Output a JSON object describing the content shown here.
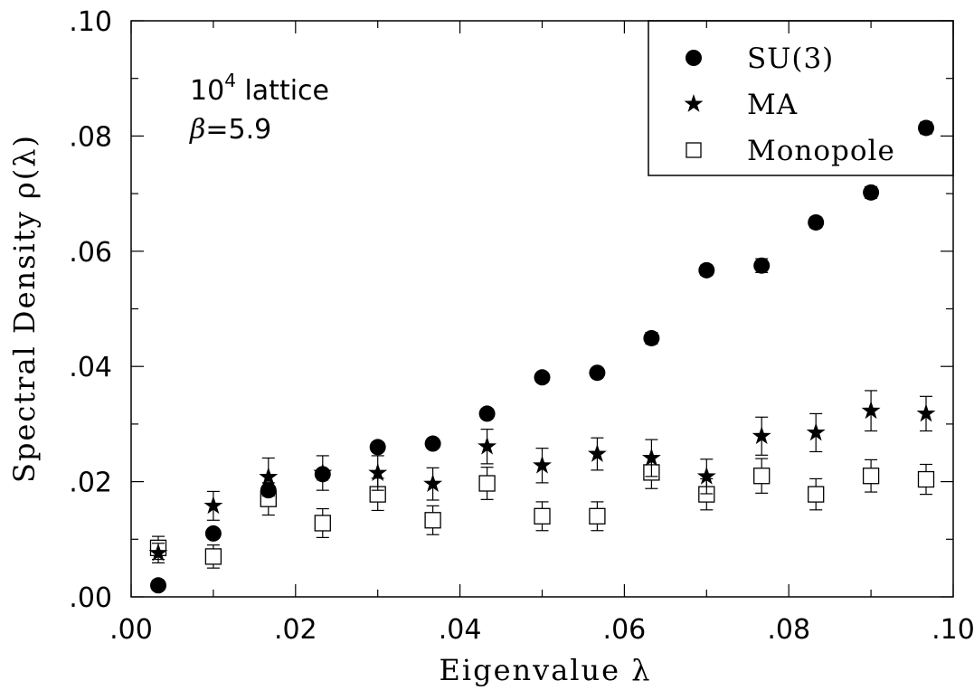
{
  "chart_data": {
    "type": "scatter",
    "xlabel": "Eigenvalue λ",
    "ylabel": "Spectral Density ρ(λ)",
    "xlim": [
      0,
      0.1
    ],
    "ylim": [
      0,
      0.1
    ],
    "x_ticks": [
      ".00",
      ".02",
      ".04",
      ".06",
      ".08",
      ".10"
    ],
    "y_ticks": [
      ".00",
      ".02",
      ".04",
      ".06",
      ".08",
      ".10"
    ],
    "grid": false,
    "legend_position": "top-right",
    "annotations": {
      "lattice_base": "10",
      "lattice_exp": "4",
      "lattice_word": " lattice",
      "beta_symbol": "β",
      "beta_value": "=5.9"
    },
    "series": [
      {
        "name": "SU(3)",
        "marker": "filled-circle",
        "points": [
          {
            "x": 0.0033,
            "y": 0.002,
            "err": 0.0003
          },
          {
            "x": 0.01,
            "y": 0.011,
            "err": 0.0004
          },
          {
            "x": 0.0167,
            "y": 0.0185,
            "err": 0.0006
          },
          {
            "x": 0.0233,
            "y": 0.0213,
            "err": 0.0007
          },
          {
            "x": 0.03,
            "y": 0.026,
            "err": 0.0008
          },
          {
            "x": 0.0367,
            "y": 0.0266,
            "err": 0.0008
          },
          {
            "x": 0.0433,
            "y": 0.0318,
            "err": 0.0008
          },
          {
            "x": 0.05,
            "y": 0.0381,
            "err": 0.0008
          },
          {
            "x": 0.0567,
            "y": 0.0389,
            "err": 0.0008
          },
          {
            "x": 0.0633,
            "y": 0.0449,
            "err": 0.001
          },
          {
            "x": 0.07,
            "y": 0.0567,
            "err": 0.0009
          },
          {
            "x": 0.0767,
            "y": 0.0575,
            "err": 0.0012
          },
          {
            "x": 0.0833,
            "y": 0.065,
            "err": 0.0009
          },
          {
            "x": 0.09,
            "y": 0.0702,
            "err": 0.001
          },
          {
            "x": 0.0967,
            "y": 0.0814,
            "err": 0.001
          }
        ]
      },
      {
        "name": "MA",
        "marker": "star",
        "points": [
          {
            "x": 0.0033,
            "y": 0.0076,
            "err": 0.0017
          },
          {
            "x": 0.01,
            "y": 0.0158,
            "err": 0.0025
          },
          {
            "x": 0.0167,
            "y": 0.0208,
            "err": 0.0033
          },
          {
            "x": 0.0233,
            "y": 0.0215,
            "err": 0.003
          },
          {
            "x": 0.03,
            "y": 0.0215,
            "err": 0.003
          },
          {
            "x": 0.0367,
            "y": 0.0196,
            "err": 0.0028
          },
          {
            "x": 0.0433,
            "y": 0.0261,
            "err": 0.003
          },
          {
            "x": 0.05,
            "y": 0.0228,
            "err": 0.003
          },
          {
            "x": 0.0567,
            "y": 0.0248,
            "err": 0.0028
          },
          {
            "x": 0.0633,
            "y": 0.0241,
            "err": 0.0032
          },
          {
            "x": 0.07,
            "y": 0.0209,
            "err": 0.003
          },
          {
            "x": 0.0767,
            "y": 0.0279,
            "err": 0.0033
          },
          {
            "x": 0.0833,
            "y": 0.0285,
            "err": 0.0033
          },
          {
            "x": 0.09,
            "y": 0.0323,
            "err": 0.0035
          },
          {
            "x": 0.0967,
            "y": 0.0318,
            "err": 0.003
          }
        ]
      },
      {
        "name": "Monopole",
        "marker": "open-square",
        "points": [
          {
            "x": 0.0033,
            "y": 0.0085,
            "err": 0.002
          },
          {
            "x": 0.01,
            "y": 0.007,
            "err": 0.002
          },
          {
            "x": 0.0167,
            "y": 0.017,
            "err": 0.0028
          },
          {
            "x": 0.0233,
            "y": 0.0128,
            "err": 0.0025
          },
          {
            "x": 0.03,
            "y": 0.0178,
            "err": 0.0028
          },
          {
            "x": 0.0367,
            "y": 0.0133,
            "err": 0.0025
          },
          {
            "x": 0.0433,
            "y": 0.0197,
            "err": 0.0028
          },
          {
            "x": 0.05,
            "y": 0.014,
            "err": 0.0025
          },
          {
            "x": 0.0567,
            "y": 0.014,
            "err": 0.0025
          },
          {
            "x": 0.0633,
            "y": 0.0216,
            "err": 0.0028
          },
          {
            "x": 0.07,
            "y": 0.0178,
            "err": 0.0027
          },
          {
            "x": 0.0767,
            "y": 0.021,
            "err": 0.003
          },
          {
            "x": 0.0833,
            "y": 0.0178,
            "err": 0.0027
          },
          {
            "x": 0.09,
            "y": 0.021,
            "err": 0.0028
          },
          {
            "x": 0.0967,
            "y": 0.0204,
            "err": 0.0026
          }
        ]
      }
    ]
  }
}
